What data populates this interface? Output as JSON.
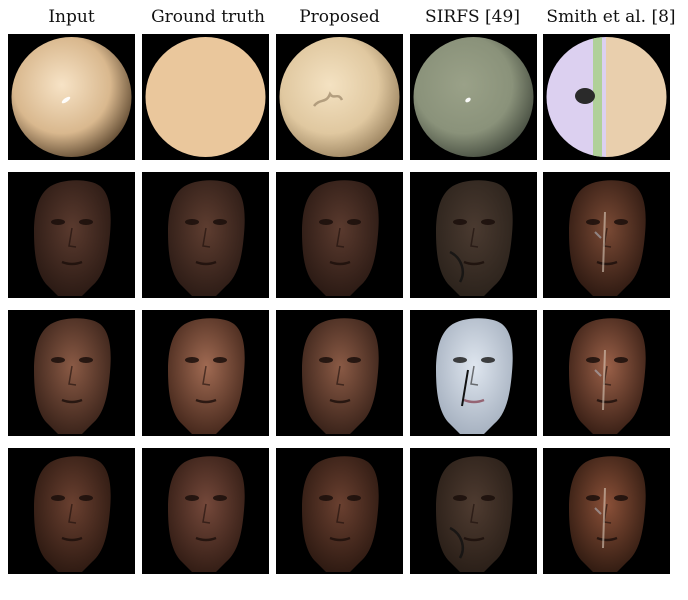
{
  "headers": [
    "Input",
    "Ground truth",
    "Proposed",
    "SIRFS [49]",
    "Smith et al. [8]"
  ],
  "rows": [
    {
      "kind": "sphere",
      "cells": [
        {
          "variant": "specular-sphere",
          "colors": {
            "light": "#f7e3c6",
            "mid": "#d9b88e",
            "dark": "#6b543a"
          }
        },
        {
          "variant": "flat-sphere",
          "colors": {
            "fill": "#eac79c"
          }
        },
        {
          "variant": "artifact-sphere",
          "colors": {
            "light": "#f4e2c2",
            "mid": "#e0c8a0",
            "dark": "#a28a66"
          }
        },
        {
          "variant": "green-sphere",
          "colors": {
            "light": "#9aa188",
            "mid": "#8a927a",
            "dark": "#4d5446"
          }
        },
        {
          "variant": "split-sphere",
          "colors": {
            "left": "#dcd0f0",
            "right": "#e9cfad",
            "accent": "#a8d08a"
          }
        }
      ]
    },
    {
      "kind": "face",
      "cells": [
        {
          "variant": "dark-face",
          "colors": {
            "skin": "#5a3a2e",
            "shade": "#2b1a14"
          }
        },
        {
          "variant": "dark-face",
          "colors": {
            "skin": "#5e3d30",
            "shade": "#2d1c16"
          }
        },
        {
          "variant": "dark-face",
          "colors": {
            "skin": "#5a3a2e",
            "shade": "#2b1a14"
          }
        },
        {
          "variant": "flat-face",
          "colors": {
            "skin": "#4a3a30",
            "shade": "#2c231c"
          }
        },
        {
          "variant": "noisy-face",
          "colors": {
            "skin": "#7a4a35",
            "shade": "#2f1a12"
          }
        }
      ]
    },
    {
      "kind": "face",
      "cells": [
        {
          "variant": "light-face",
          "colors": {
            "skin": "#8a5a45",
            "shade": "#3a231a"
          }
        },
        {
          "variant": "light-face",
          "colors": {
            "skin": "#a06a52",
            "shade": "#47291d"
          }
        },
        {
          "variant": "light-face",
          "colors": {
            "skin": "#8a5a45",
            "shade": "#3a231a"
          }
        },
        {
          "variant": "pale-face",
          "colors": {
            "skin": "#dfe6ef",
            "shade": "#a6b1c0"
          }
        },
        {
          "variant": "noisy-face",
          "colors": {
            "skin": "#9a6048",
            "shade": "#3a2016"
          }
        }
      ]
    },
    {
      "kind": "face",
      "cells": [
        {
          "variant": "dark-face",
          "colors": {
            "skin": "#6a4030",
            "shade": "#2e1a12"
          }
        },
        {
          "variant": "dark-face",
          "colors": {
            "skin": "#74483a",
            "shade": "#331d15"
          }
        },
        {
          "variant": "dark-face",
          "colors": {
            "skin": "#6a4030",
            "shade": "#2e1a12"
          }
        },
        {
          "variant": "flat-face",
          "colors": {
            "skin": "#4e3b30",
            "shade": "#2a1f18"
          }
        },
        {
          "variant": "noisy-face",
          "colors": {
            "skin": "#8a5038",
            "shade": "#321c12"
          }
        }
      ]
    }
  ]
}
